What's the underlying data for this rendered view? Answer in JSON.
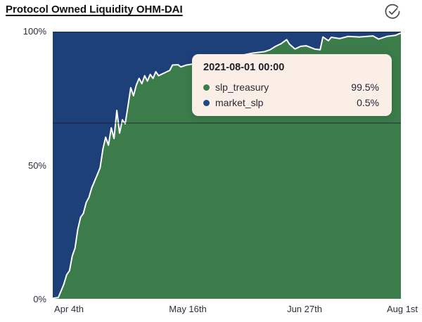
{
  "header": {
    "title": "Protocol Owned Liquidity OHM-DAI",
    "status_icon": "check-circle"
  },
  "chart": {
    "y_ticks": [
      "100%",
      "50%",
      "0%"
    ],
    "x_ticks": [
      "Apr 4th",
      "May 16th",
      "Jun 27th",
      "Aug 1st"
    ],
    "colors": {
      "slp_treasury": "#3b7c4a",
      "market_slp": "#1e4078",
      "curve_stroke": "#ffffff",
      "crosshair": "rgba(15,20,35,0.55)",
      "top_gridline": "rgba(15,20,35,0.4)"
    },
    "hover_line_pct": 65.8
  },
  "tooltip": {
    "title": "2021-08-01 00:00",
    "rows": [
      {
        "label": "slp_treasury",
        "value": "99.5%",
        "color": "#3b7c4a"
      },
      {
        "label": "market_slp",
        "value": "0.5%",
        "color": "#1d4a86"
      }
    ]
  },
  "chart_data": {
    "type": "area",
    "stacked": true,
    "unit": "%",
    "title": "Protocol Owned Liquidity OHM-DAI",
    "xlabel": "",
    "ylabel": "",
    "ylim": [
      0,
      100
    ],
    "grid": false,
    "legend_position": "tooltip-only",
    "x_range": [
      "2021-03-29",
      "2021-08-01"
    ],
    "x": [
      "2021-03-29",
      "2021-03-31",
      "2021-04-01",
      "2021-04-02",
      "2021-04-03",
      "2021-04-04",
      "2021-04-05",
      "2021-04-06",
      "2021-04-07",
      "2021-04-08",
      "2021-04-09",
      "2021-04-10",
      "2021-04-11",
      "2021-04-12",
      "2021-04-13",
      "2021-04-14",
      "2021-04-15",
      "2021-04-16",
      "2021-04-17",
      "2021-04-18",
      "2021-04-19",
      "2021-04-20",
      "2021-04-21",
      "2021-04-22",
      "2021-04-23",
      "2021-04-24",
      "2021-04-25",
      "2021-04-26",
      "2021-04-27",
      "2021-04-28",
      "2021-04-29",
      "2021-04-30",
      "2021-05-01",
      "2021-05-02",
      "2021-05-03",
      "2021-05-04",
      "2021-05-05",
      "2021-05-06",
      "2021-05-08",
      "2021-05-10",
      "2021-05-11",
      "2021-05-13",
      "2021-05-14",
      "2021-05-16",
      "2021-05-19",
      "2021-05-22",
      "2021-05-25",
      "2021-05-30",
      "2021-06-04",
      "2021-06-09",
      "2021-06-13",
      "2021-06-15",
      "2021-06-17",
      "2021-06-19",
      "2021-06-21",
      "2021-06-22",
      "2021-06-24",
      "2021-06-26",
      "2021-06-28",
      "2021-07-01",
      "2021-07-03",
      "2021-07-04",
      "2021-07-06",
      "2021-07-07",
      "2021-07-10",
      "2021-07-13",
      "2021-07-17",
      "2021-07-22",
      "2021-07-24",
      "2021-07-27",
      "2021-07-30",
      "2021-08-01"
    ],
    "series": [
      {
        "name": "slp_treasury",
        "color": "#3b7c4a",
        "values": [
          0.2,
          0.5,
          3,
          5.5,
          9,
          10.5,
          16,
          19,
          26,
          30.5,
          32,
          36,
          38,
          41.5,
          44,
          46.5,
          49,
          56,
          60.5,
          57.5,
          64,
          60,
          70.5,
          62,
          67,
          65.5,
          72,
          79,
          76,
          80,
          82.5,
          80.5,
          83.5,
          81.5,
          84,
          82.5,
          85,
          83.5,
          84.5,
          85.5,
          87.5,
          87.6,
          86.8,
          87.5,
          88,
          89,
          89.5,
          90.5,
          91,
          92,
          92.5,
          93.2,
          94.5,
          95.5,
          97,
          95.3,
          93.5,
          94.5,
          94.7,
          93.5,
          93.2,
          98,
          96.6,
          97.9,
          97.4,
          98.2,
          98,
          98.4,
          97.2,
          98.2,
          98.6,
          99.5
        ]
      },
      {
        "name": "market_slp",
        "color": "#1e4078",
        "values": [
          99.8,
          99.5,
          97,
          94.5,
          91,
          89.5,
          84,
          81,
          74,
          69.5,
          68,
          64,
          62,
          58.5,
          56,
          53.5,
          51,
          44,
          39.5,
          42.5,
          36,
          40,
          29.5,
          38,
          33,
          34.5,
          28,
          21,
          24,
          20,
          17.5,
          19.5,
          16.5,
          18.5,
          16,
          17.5,
          15,
          16.5,
          15.5,
          14.5,
          12.5,
          12.4,
          13.2,
          12.5,
          12,
          11,
          10.5,
          9.5,
          9,
          8,
          7.5,
          6.8,
          5.5,
          4.5,
          3,
          4.7,
          6.5,
          5.5,
          5.3,
          6.5,
          6.8,
          2,
          3.4,
          2.1,
          2.6,
          1.8,
          2,
          1.6,
          2.8,
          1.8,
          1.4,
          0.5
        ]
      }
    ],
    "hover": {
      "x": "2021-08-01 00:00",
      "values": {
        "slp_treasury": "99.5%",
        "market_slp": "0.5%"
      }
    }
  }
}
